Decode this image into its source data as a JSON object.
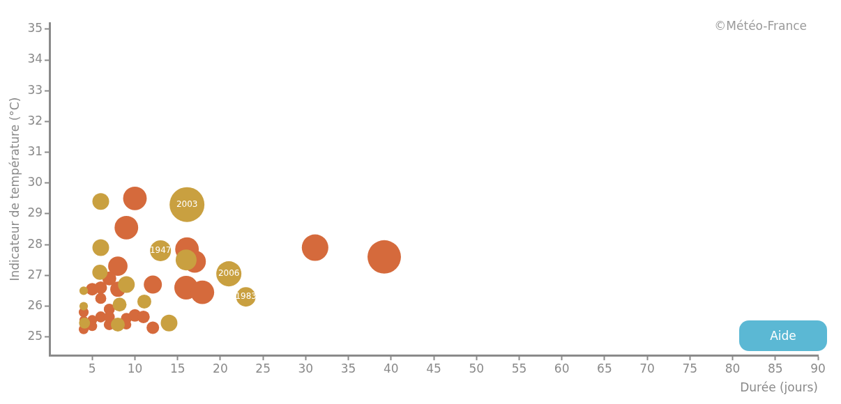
{
  "chart_data": {
    "type": "bubble",
    "xlabel": "Durée (jours)",
    "ylabel": "Indicateur de température (°C)",
    "xlim": [
      0,
      90
    ],
    "xticks": [
      5,
      10,
      15,
      20,
      25,
      30,
      35,
      40,
      45,
      50,
      55,
      60,
      65,
      70,
      75,
      80,
      85,
      90
    ],
    "ylim": [
      24.4,
      35.2
    ],
    "yticks": [
      25,
      26,
      27,
      28,
      29,
      30,
      31,
      32,
      33,
      34,
      35
    ],
    "annotations": [
      "©Météo-France",
      "Aide",
      {
        "text": "2003",
        "x": 16.1,
        "y": 29.3
      },
      {
        "text": "1947",
        "x": 13,
        "y": 27.8
      },
      {
        "text": "2006",
        "x": 21,
        "y": 27.05
      },
      {
        "text": "1983",
        "x": 23,
        "y": 26.3
      }
    ],
    "series": [
      {
        "color": "#c9a040",
        "x": [
          6,
          16.1,
          6,
          13,
          16,
          21,
          23,
          5.9,
          9,
          11.1,
          14,
          8.2,
          4,
          4,
          4.1,
          8
        ],
        "values": [
          29.4,
          29.3,
          27.9,
          27.8,
          27.5,
          27.05,
          26.3,
          27.1,
          26.7,
          26.15,
          25.45,
          26.05,
          26.5,
          26,
          25.45,
          25.4
        ],
        "sizes": [
          0.23,
          1,
          0.23,
          0.36,
          0.36,
          0.52,
          0.31,
          0.19,
          0.23,
          0.16,
          0.23,
          0.16,
          0.06,
          0.06,
          0.1,
          0.16
        ]
      },
      {
        "color": "#d56a3c",
        "x": [
          10,
          9,
          31.1,
          39.2,
          16.1,
          17,
          8,
          16,
          17.9,
          12.1,
          8,
          7,
          6,
          5,
          6,
          7,
          6,
          5,
          4,
          4,
          7,
          9,
          10,
          11,
          12.1,
          4,
          5,
          7,
          9
        ],
        "values": [
          29.5,
          28.55,
          27.9,
          27.6,
          27.85,
          27.45,
          27.3,
          26.6,
          26.45,
          26.7,
          26.55,
          26.9,
          26.6,
          26.55,
          26.25,
          25.9,
          25.65,
          25.55,
          25.8,
          25.25,
          25.4,
          25.6,
          25.7,
          25.65,
          25.3,
          25.55,
          25.35,
          25.65,
          25.4
        ],
        "sizes": [
          0.46,
          0.46,
          0.58,
          0.92,
          0.46,
          0.41,
          0.31,
          0.46,
          0.46,
          0.27,
          0.19,
          0.16,
          0.13,
          0.13,
          0.1,
          0.1,
          0.1,
          0.08,
          0.08,
          0.08,
          0.1,
          0.1,
          0.13,
          0.13,
          0.13,
          0.06,
          0.08,
          0.1,
          0.08
        ]
      }
    ]
  }
}
